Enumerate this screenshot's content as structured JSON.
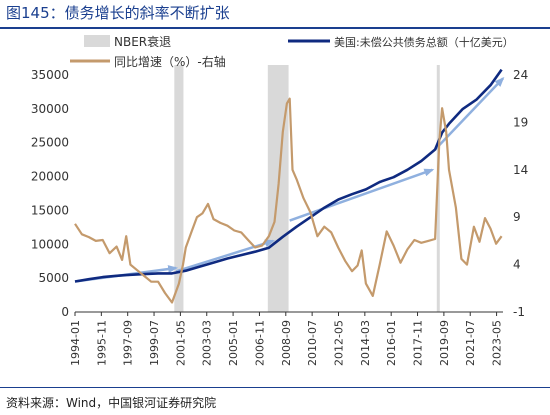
{
  "title": "图145：债务增长的斜率不断扩张",
  "source": "资料来源：Wind，中国银河证券研究院",
  "chart_data": {
    "type": "line",
    "legend": {
      "recession": "NBER衰退",
      "debt": "美国:未偿公共债务总额（十亿美元）",
      "growth": "同比增速（%）-右轴"
    },
    "x_tick_labels": [
      "1994-01",
      "1995-11",
      "1997-09",
      "1999-07",
      "2001-05",
      "2003-03",
      "2005-01",
      "2006-11",
      "2008-09",
      "2010-07",
      "2012-05",
      "2014-03",
      "2016-01",
      "2017-11",
      "2019-09",
      "2021-07",
      "2023-05"
    ],
    "x_range": [
      1994.0,
      2024.9
    ],
    "left_axis": {
      "min": 0,
      "max": 35000,
      "ticks": [
        0,
        5000,
        10000,
        15000,
        20000,
        25000,
        30000,
        35000
      ]
    },
    "right_axis": {
      "min": -1,
      "max": 24,
      "ticks": [
        -1,
        4,
        9,
        14,
        19,
        24
      ]
    },
    "recessions": [
      [
        2001.17,
        2001.83
      ],
      [
        2007.92,
        2009.42
      ],
      [
        2020.12,
        2020.33
      ]
    ],
    "series": [
      {
        "name": "美国:未偿公共债务总额（十亿美元）",
        "axis": "left",
        "color": "#0f2a80",
        "points": [
          [
            1994.0,
            4500
          ],
          [
            1995.0,
            4850
          ],
          [
            1996.0,
            5150
          ],
          [
            1997.0,
            5350
          ],
          [
            1998.0,
            5500
          ],
          [
            1999.0,
            5600
          ],
          [
            2000.0,
            5700
          ],
          [
            2001.0,
            5700
          ],
          [
            2002.0,
            6100
          ],
          [
            2003.0,
            6700
          ],
          [
            2004.0,
            7300
          ],
          [
            2005.0,
            7900
          ],
          [
            2006.0,
            8400
          ],
          [
            2007.0,
            8900
          ],
          [
            2008.0,
            9500
          ],
          [
            2009.0,
            11100
          ],
          [
            2010.0,
            12600
          ],
          [
            2011.0,
            14000
          ],
          [
            2012.0,
            15400
          ],
          [
            2013.0,
            16600
          ],
          [
            2014.0,
            17400
          ],
          [
            2015.0,
            18100
          ],
          [
            2016.0,
            19200
          ],
          [
            2017.0,
            19900
          ],
          [
            2018.0,
            21000
          ],
          [
            2019.0,
            22300
          ],
          [
            2020.0,
            24000
          ],
          [
            2020.5,
            26500
          ],
          [
            2021.0,
            27800
          ],
          [
            2022.0,
            30000
          ],
          [
            2023.0,
            31400
          ],
          [
            2024.0,
            33500
          ],
          [
            2024.8,
            35800
          ]
        ]
      },
      {
        "name": "同比增速（%）-右轴",
        "axis": "right",
        "color": "#c49a6c",
        "points": [
          [
            1994.0,
            8.3
          ],
          [
            1994.5,
            7.2
          ],
          [
            1995.0,
            6.9
          ],
          [
            1995.5,
            6.5
          ],
          [
            1996.0,
            6.6
          ],
          [
            1996.5,
            5.2
          ],
          [
            1997.0,
            5.9
          ],
          [
            1997.4,
            4.5
          ],
          [
            1997.7,
            7.0
          ],
          [
            1998.0,
            4.0
          ],
          [
            1998.5,
            3.4
          ],
          [
            1999.0,
            2.8
          ],
          [
            1999.5,
            2.2
          ],
          [
            2000.0,
            2.2
          ],
          [
            2000.5,
            1.0
          ],
          [
            2001.0,
            0.0
          ],
          [
            2001.5,
            2.0
          ],
          [
            2001.8,
            4.0
          ],
          [
            2002.0,
            5.8
          ],
          [
            2002.4,
            7.4
          ],
          [
            2002.8,
            9.0
          ],
          [
            2003.2,
            9.4
          ],
          [
            2003.6,
            10.4
          ],
          [
            2004.0,
            8.8
          ],
          [
            2004.5,
            8.4
          ],
          [
            2005.0,
            8.1
          ],
          [
            2005.5,
            7.6
          ],
          [
            2006.0,
            7.4
          ],
          [
            2006.5,
            6.6
          ],
          [
            2007.0,
            5.8
          ],
          [
            2007.5,
            6.0
          ],
          [
            2008.0,
            7.0
          ],
          [
            2008.4,
            8.5
          ],
          [
            2008.7,
            12.5
          ],
          [
            2009.0,
            18.0
          ],
          [
            2009.3,
            21.0
          ],
          [
            2009.5,
            21.5
          ],
          [
            2009.7,
            14.0
          ],
          [
            2010.0,
            13.0
          ],
          [
            2010.5,
            11.0
          ],
          [
            2011.0,
            9.5
          ],
          [
            2011.5,
            7.0
          ],
          [
            2012.0,
            8.0
          ],
          [
            2012.5,
            7.4
          ],
          [
            2013.0,
            5.8
          ],
          [
            2013.5,
            4.4
          ],
          [
            2014.0,
            3.3
          ],
          [
            2014.4,
            3.9
          ],
          [
            2014.7,
            5.5
          ],
          [
            2015.0,
            2.0
          ],
          [
            2015.5,
            0.7
          ],
          [
            2016.0,
            4.0
          ],
          [
            2016.5,
            7.5
          ],
          [
            2017.0,
            6.0
          ],
          [
            2017.5,
            4.2
          ],
          [
            2018.0,
            5.6
          ],
          [
            2018.5,
            6.6
          ],
          [
            2019.0,
            6.3
          ],
          [
            2019.5,
            6.5
          ],
          [
            2020.0,
            6.7
          ],
          [
            2020.3,
            17.0
          ],
          [
            2020.5,
            20.5
          ],
          [
            2020.8,
            18.0
          ],
          [
            2021.0,
            14.0
          ],
          [
            2021.5,
            10.0
          ],
          [
            2021.9,
            4.6
          ],
          [
            2022.3,
            4.0
          ],
          [
            2022.8,
            8.0
          ],
          [
            2023.2,
            6.4
          ],
          [
            2023.6,
            8.9
          ],
          [
            2024.0,
            7.8
          ],
          [
            2024.4,
            6.2
          ],
          [
            2024.8,
            7.0
          ]
        ]
      }
    ],
    "trend_arrows": [
      {
        "from": [
          1994.0,
          4500
        ],
        "to": [
          2001.3,
          6500
        ]
      },
      {
        "from": [
          2001.3,
          6000
        ],
        "to": [
          2008.3,
          10500
        ]
      },
      {
        "from": [
          2009.5,
          13500
        ],
        "to": [
          2019.8,
          21000
        ]
      },
      {
        "from": [
          2020.0,
          24000
        ],
        "to": [
          2024.9,
          34500
        ]
      }
    ]
  },
  "colors": {
    "title": "#1a3f8f",
    "debt": "#0f2a80",
    "growth": "#c49a6c",
    "recession": "#d9d9d9",
    "arrow": "#8fb0df"
  }
}
